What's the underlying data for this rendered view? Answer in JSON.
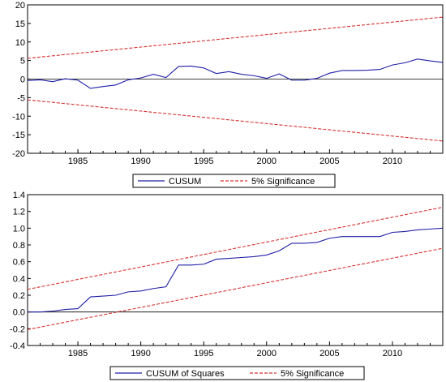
{
  "chart_data": [
    {
      "type": "line",
      "xlim": [
        1981,
        2014
      ],
      "ylim": [
        -20,
        20
      ],
      "xticks": [
        1985,
        1990,
        1995,
        2000,
        2005,
        2010
      ],
      "yticks": [
        -20,
        -15,
        -10,
        -5,
        0,
        5,
        10,
        15,
        20
      ],
      "grid": false,
      "legend_position": "bottom",
      "zero_line": true,
      "series": [
        {
          "name": "CUSUM",
          "color": "#1f1fa8",
          "style": "solid",
          "x": [
            1981,
            1982,
            1983,
            1984,
            1985,
            1986,
            1987,
            1988,
            1989,
            1990,
            1991,
            1992,
            1993,
            1994,
            1995,
            1996,
            1997,
            1998,
            1999,
            2000,
            2001,
            2002,
            2003,
            2004,
            2005,
            2006,
            2007,
            2008,
            2009,
            2010,
            2011,
            2012,
            2013,
            2014
          ],
          "values": [
            -0.4,
            -0.2,
            -0.7,
            0.1,
            -0.3,
            -2.5,
            -2.0,
            -1.6,
            -0.2,
            0.3,
            1.3,
            0.4,
            3.4,
            3.5,
            3.0,
            1.5,
            2.0,
            1.3,
            0.9,
            0.2,
            1.4,
            -0.3,
            -0.3,
            0.2,
            1.6,
            2.3,
            2.3,
            2.4,
            2.6,
            3.8,
            4.4,
            5.4,
            4.9,
            4.5
          ]
        },
        {
          "name": "5% Significance",
          "color": "#d93030",
          "style": "dashed",
          "bands": [
            {
              "x": [
                1981,
                2014
              ],
              "values": [
                5.6,
                16.7
              ]
            },
            {
              "x": [
                1981,
                2014
              ],
              "values": [
                -5.6,
                -16.7
              ]
            }
          ]
        }
      ]
    },
    {
      "type": "line",
      "xlim": [
        1981,
        2014
      ],
      "ylim": [
        -0.4,
        1.4
      ],
      "xticks": [
        1985,
        1990,
        1995,
        2000,
        2005,
        2010
      ],
      "yticks": [
        -0.4,
        -0.2,
        0.0,
        0.2,
        0.4,
        0.6,
        0.8,
        1.0,
        1.2,
        1.4
      ],
      "ytick_labels": [
        "-0.4",
        "-0.2",
        "0.0",
        "0.2",
        "0.4",
        "0.6",
        "0.8",
        "1.0",
        "1.2",
        "1.4"
      ],
      "grid": false,
      "legend_position": "bottom",
      "zero_line": true,
      "series": [
        {
          "name": "CUSUM of Squares",
          "color": "#1f1fa8",
          "style": "solid",
          "x": [
            1981,
            1982,
            1983,
            1984,
            1985,
            1986,
            1987,
            1988,
            1989,
            1990,
            1991,
            1992,
            1993,
            1994,
            1995,
            1996,
            1997,
            1998,
            1999,
            2000,
            2001,
            2002,
            2003,
            2004,
            2005,
            2006,
            2007,
            2008,
            2009,
            2010,
            2011,
            2012,
            2013,
            2014
          ],
          "values": [
            0.0,
            0.0,
            0.01,
            0.03,
            0.04,
            0.18,
            0.19,
            0.2,
            0.24,
            0.25,
            0.28,
            0.3,
            0.56,
            0.56,
            0.57,
            0.63,
            0.64,
            0.65,
            0.66,
            0.68,
            0.73,
            0.82,
            0.82,
            0.83,
            0.88,
            0.9,
            0.9,
            0.9,
            0.9,
            0.95,
            0.96,
            0.98,
            0.99,
            1.0
          ]
        },
        {
          "name": "5% Significance",
          "color": "#d93030",
          "style": "dashed",
          "bands": [
            {
              "x": [
                1981,
                2014
              ],
              "values": [
                0.27,
                1.25
              ]
            },
            {
              "x": [
                1981,
                2014
              ],
              "values": [
                -0.21,
                0.76
              ]
            }
          ]
        }
      ]
    }
  ]
}
